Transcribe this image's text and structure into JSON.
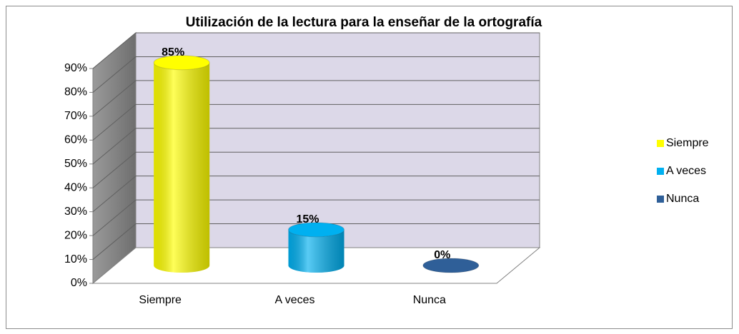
{
  "chart_data": {
    "type": "bar3d",
    "title": "Utilización de la lectura para la  enseñar de la ortografía",
    "categories": [
      "Siempre",
      "A veces",
      "Nunca"
    ],
    "values": [
      85,
      15,
      0
    ],
    "value_labels": [
      "85%",
      "15%",
      "0%"
    ],
    "colors": [
      "#ffff00",
      "#00b0f0",
      "#2f5f98"
    ],
    "ylim": [
      0,
      90
    ],
    "yticks": [
      {
        "value": 0,
        "label": "0%"
      },
      {
        "value": 10,
        "label": "10%"
      },
      {
        "value": 20,
        "label": "20%"
      },
      {
        "value": 30,
        "label": "30%"
      },
      {
        "value": 40,
        "label": "40%"
      },
      {
        "value": 50,
        "label": "50%"
      },
      {
        "value": 60,
        "label": "60%"
      },
      {
        "value": 70,
        "label": "70%"
      },
      {
        "value": 80,
        "label": "80%"
      },
      {
        "value": 90,
        "label": "90%"
      }
    ],
    "grid": true,
    "legend": "right"
  }
}
